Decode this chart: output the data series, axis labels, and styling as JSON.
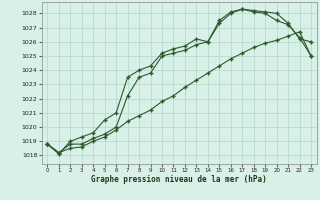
{
  "xlabel": "Graphe pression niveau de la mer (hPa)",
  "bg_color": "#d8f0e8",
  "grid_color": "#b0d8c8",
  "line_color": "#2d5a2d",
  "xlim": [
    -0.5,
    23.5
  ],
  "ylim": [
    1017.4,
    1028.8
  ],
  "yticks": [
    1018,
    1019,
    1020,
    1021,
    1022,
    1023,
    1024,
    1025,
    1026,
    1027,
    1028
  ],
  "xticks": [
    0,
    1,
    2,
    3,
    4,
    5,
    6,
    7,
    8,
    9,
    10,
    11,
    12,
    13,
    14,
    15,
    16,
    17,
    18,
    19,
    20,
    21,
    22,
    23
  ],
  "line1_x": [
    0,
    1,
    2,
    3,
    4,
    5,
    6,
    7,
    8,
    9,
    10,
    11,
    12,
    13,
    14,
    15,
    16,
    17,
    18,
    19,
    20,
    21,
    22,
    23
  ],
  "line1_y": [
    1018.8,
    1018.2,
    1018.8,
    1018.8,
    1019.2,
    1019.5,
    1020.0,
    1022.2,
    1023.5,
    1023.8,
    1025.0,
    1025.2,
    1025.4,
    1025.8,
    1026.0,
    1027.3,
    1028.0,
    1028.3,
    1028.1,
    1028.0,
    1027.5,
    1027.2,
    1026.3,
    1025.0
  ],
  "line2_x": [
    0,
    1,
    2,
    3,
    4,
    5,
    6,
    7,
    8,
    9,
    10,
    11,
    12,
    13,
    14,
    15,
    16,
    17,
    18,
    19,
    20,
    21,
    22,
    23
  ],
  "line2_y": [
    1018.8,
    1018.2,
    1018.5,
    1018.6,
    1019.0,
    1019.3,
    1019.8,
    1020.4,
    1020.8,
    1021.2,
    1021.8,
    1022.2,
    1022.8,
    1023.3,
    1023.8,
    1024.3,
    1024.8,
    1025.2,
    1025.6,
    1025.9,
    1026.1,
    1026.4,
    1026.7,
    1025.0
  ],
  "line3_x": [
    0,
    1,
    2,
    3,
    4,
    5,
    6,
    7,
    8,
    9,
    10,
    11,
    12,
    13,
    14,
    15,
    16,
    17,
    18,
    19,
    20,
    21,
    22,
    23
  ],
  "line3_y": [
    1018.8,
    1018.1,
    1019.0,
    1019.3,
    1019.6,
    1020.5,
    1021.0,
    1023.5,
    1024.0,
    1024.3,
    1025.2,
    1025.5,
    1025.7,
    1026.2,
    1026.0,
    1027.5,
    1028.1,
    1028.3,
    1028.2,
    1028.1,
    1028.0,
    1027.3,
    1026.2,
    1026.0
  ]
}
